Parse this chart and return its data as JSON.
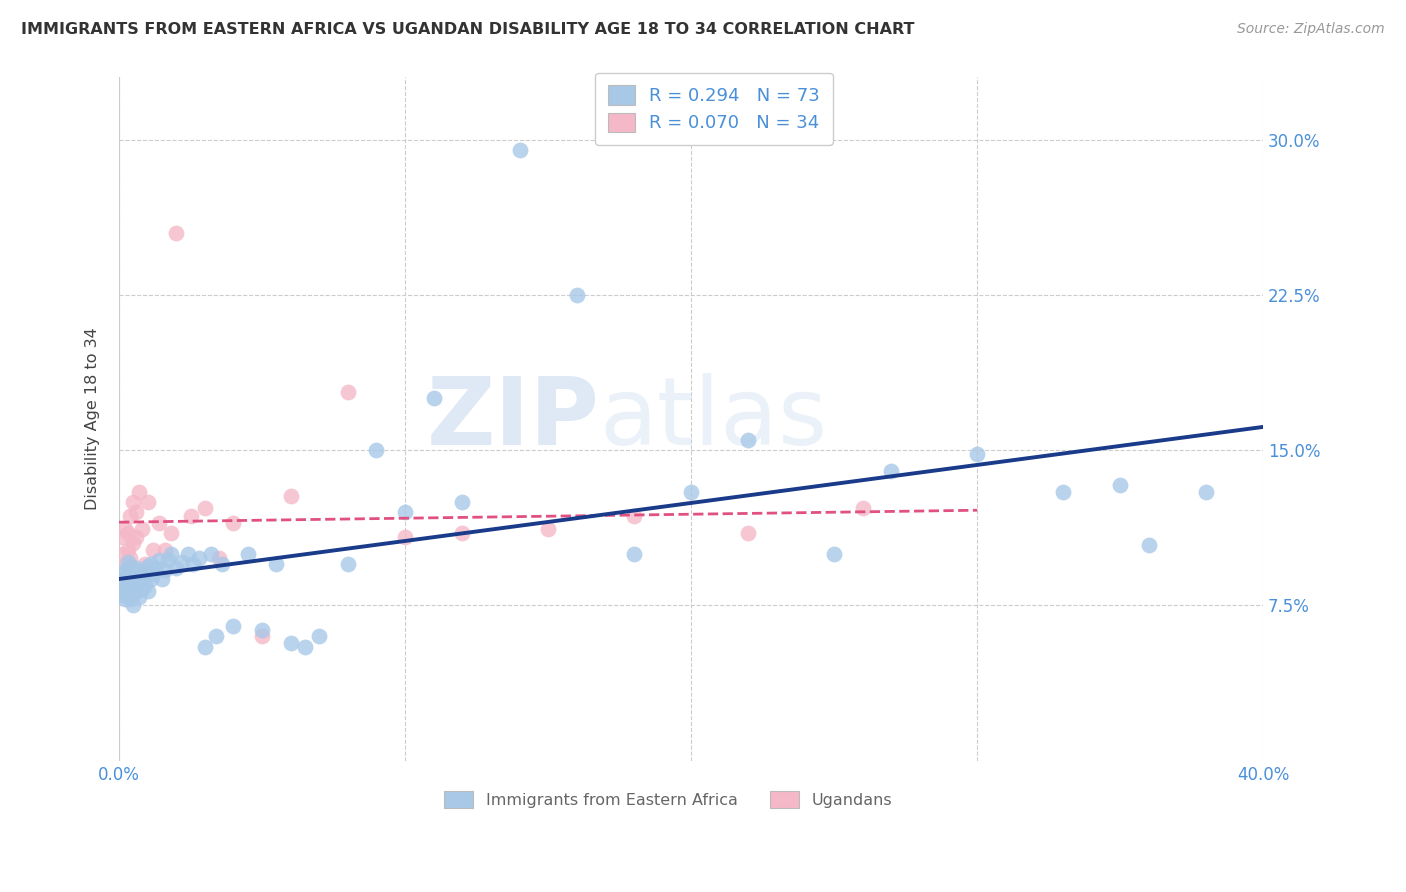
{
  "title": "IMMIGRANTS FROM EASTERN AFRICA VS UGANDAN DISABILITY AGE 18 TO 34 CORRELATION CHART",
  "source": "Source: ZipAtlas.com",
  "ylabel": "Disability Age 18 to 34",
  "xlim": [
    0.0,
    0.4
  ],
  "ylim": [
    0.0,
    0.33
  ],
  "xticks": [
    0.0,
    0.1,
    0.2,
    0.3,
    0.4
  ],
  "xtick_labels": [
    "0.0%",
    "",
    "",
    "",
    "40.0%"
  ],
  "yticks": [
    0.075,
    0.15,
    0.225,
    0.3
  ],
  "ytick_labels": [
    "7.5%",
    "15.0%",
    "22.5%",
    "30.0%"
  ],
  "blue_R": 0.294,
  "blue_N": 73,
  "pink_R": 0.07,
  "pink_N": 34,
  "blue_color": "#A8C8E8",
  "pink_color": "#F4B8C8",
  "blue_line_color": "#1A3A8A",
  "pink_line_color": "#E05080",
  "blue_x": [
    0.001,
    0.001,
    0.001,
    0.002,
    0.002,
    0.002,
    0.002,
    0.003,
    0.003,
    0.003,
    0.003,
    0.004,
    0.004,
    0.004,
    0.004,
    0.005,
    0.005,
    0.005,
    0.005,
    0.006,
    0.006,
    0.006,
    0.007,
    0.007,
    0.007,
    0.008,
    0.008,
    0.009,
    0.009,
    0.01,
    0.01,
    0.011,
    0.011,
    0.012,
    0.013,
    0.014,
    0.015,
    0.016,
    0.017,
    0.018,
    0.02,
    0.022,
    0.024,
    0.026,
    0.028,
    0.03,
    0.032,
    0.034,
    0.036,
    0.04,
    0.045,
    0.05,
    0.055,
    0.06,
    0.065,
    0.07,
    0.08,
    0.09,
    0.1,
    0.11,
    0.12,
    0.14,
    0.16,
    0.18,
    0.2,
    0.22,
    0.25,
    0.27,
    0.3,
    0.33,
    0.36,
    0.38,
    0.35
  ],
  "blue_y": [
    0.08,
    0.085,
    0.09,
    0.078,
    0.082,
    0.088,
    0.092,
    0.08,
    0.084,
    0.09,
    0.096,
    0.078,
    0.083,
    0.088,
    0.094,
    0.08,
    0.085,
    0.075,
    0.092,
    0.082,
    0.087,
    0.093,
    0.079,
    0.086,
    0.091,
    0.083,
    0.089,
    0.085,
    0.091,
    0.082,
    0.094,
    0.088,
    0.095,
    0.09,
    0.093,
    0.097,
    0.088,
    0.092,
    0.097,
    0.1,
    0.093,
    0.096,
    0.1,
    0.095,
    0.098,
    0.055,
    0.1,
    0.06,
    0.095,
    0.065,
    0.1,
    0.063,
    0.095,
    0.057,
    0.055,
    0.06,
    0.095,
    0.15,
    0.12,
    0.175,
    0.125,
    0.295,
    0.225,
    0.1,
    0.13,
    0.155,
    0.1,
    0.14,
    0.148,
    0.13,
    0.104,
    0.13,
    0.133
  ],
  "pink_x": [
    0.001,
    0.001,
    0.002,
    0.002,
    0.003,
    0.003,
    0.004,
    0.004,
    0.005,
    0.005,
    0.006,
    0.006,
    0.007,
    0.008,
    0.009,
    0.01,
    0.012,
    0.014,
    0.016,
    0.018,
    0.02,
    0.025,
    0.03,
    0.035,
    0.04,
    0.05,
    0.06,
    0.08,
    0.1,
    0.12,
    0.15,
    0.18,
    0.22,
    0.26
  ],
  "pink_y": [
    0.1,
    0.108,
    0.095,
    0.112,
    0.102,
    0.11,
    0.098,
    0.118,
    0.105,
    0.125,
    0.108,
    0.12,
    0.13,
    0.112,
    0.095,
    0.125,
    0.102,
    0.115,
    0.102,
    0.11,
    0.255,
    0.118,
    0.122,
    0.098,
    0.115,
    0.06,
    0.128,
    0.178,
    0.108,
    0.11,
    0.112,
    0.118,
    0.11,
    0.122
  ]
}
